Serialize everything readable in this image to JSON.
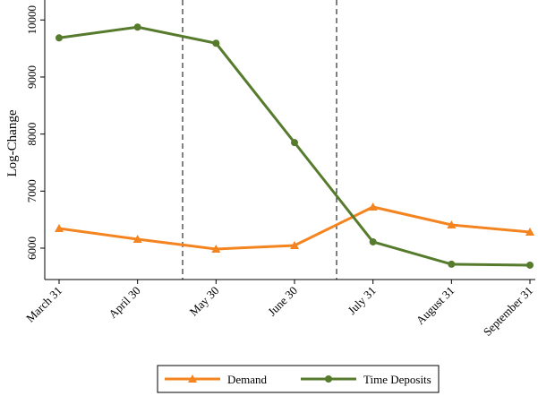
{
  "chart_data": {
    "type": "line",
    "y_label": "Log-Change",
    "categories": [
      "March 31",
      "April 30",
      "May 30",
      "June 30",
      "July 31",
      "August 31",
      "September 31"
    ],
    "series": [
      {
        "name": "Demand",
        "color": "#f4841f",
        "marker": "triangle",
        "values": [
          6345,
          6157,
          5984,
          6047,
          6722,
          6408,
          6282
        ]
      },
      {
        "name": "Time Deposits",
        "color": "#567b2d",
        "marker": "circle",
        "values": [
          9686,
          9875,
          9592,
          7851,
          6110,
          5718,
          5702
        ]
      }
    ],
    "ylim": [
      5450,
      10350
    ],
    "yticks": [
      6000,
      7000,
      8000,
      9000,
      10000
    ],
    "grid": false,
    "legend": "bottom"
  }
}
